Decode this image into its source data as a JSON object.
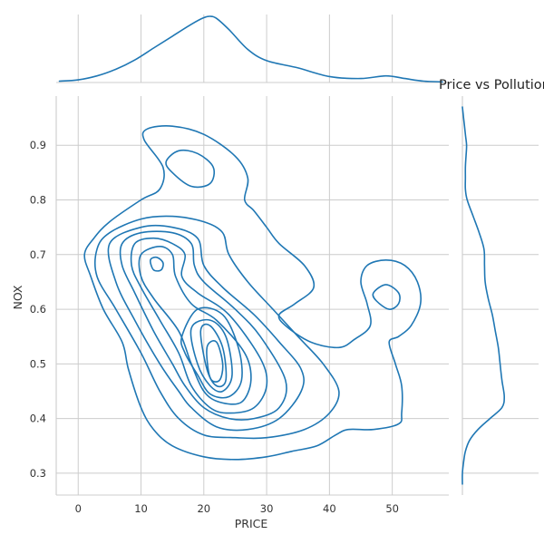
{
  "chart_data": {
    "type": "kde_joint",
    "title": "Price vs Pollution",
    "xlabel": "PRICE",
    "ylabel": "NOX",
    "x_ticks": [
      0,
      10,
      20,
      30,
      40,
      50
    ],
    "y_ticks": [
      0.3,
      0.4,
      0.5,
      0.6,
      0.7,
      0.8,
      0.9
    ],
    "xlim": [
      -3.5,
      59
    ],
    "ylim": [
      0.26,
      0.99
    ],
    "grid": true,
    "line_color": "#1f77b4",
    "marginal_x_density": {
      "x": [
        -3,
        0,
        3,
        6,
        9,
        12,
        15,
        18,
        20,
        21,
        22,
        24,
        27,
        30,
        35,
        40,
        45,
        49,
        52,
        55,
        58
      ],
      "density": [
        0.02,
        0.04,
        0.1,
        0.2,
        0.34,
        0.52,
        0.7,
        0.88,
        0.98,
        1.0,
        0.97,
        0.8,
        0.5,
        0.33,
        0.22,
        0.09,
        0.06,
        0.1,
        0.06,
        0.02,
        0.01
      ]
    },
    "marginal_y_density": {
      "y": [
        0.97,
        0.95,
        0.92,
        0.9,
        0.88,
        0.86,
        0.84,
        0.82,
        0.8,
        0.77,
        0.74,
        0.71,
        0.68,
        0.65,
        0.62,
        0.59,
        0.56,
        0.53,
        0.5,
        0.47,
        0.44,
        0.42,
        0.4,
        0.38,
        0.36,
        0.34,
        0.32,
        0.3,
        0.28
      ],
      "density": [
        0.0,
        0.02,
        0.05,
        0.07,
        0.06,
        0.05,
        0.05,
        0.05,
        0.08,
        0.18,
        0.28,
        0.36,
        0.37,
        0.38,
        0.43,
        0.5,
        0.55,
        0.6,
        0.63,
        0.66,
        0.7,
        0.66,
        0.46,
        0.26,
        0.12,
        0.05,
        0.02,
        0.0,
        0.0
      ]
    },
    "contours": [
      [
        [
          2.5,
          0.73
        ],
        [
          5,
          0.76
        ],
        [
          10,
          0.8
        ],
        [
          13,
          0.82
        ],
        [
          13.5,
          0.86
        ],
        [
          10.5,
          0.91
        ],
        [
          11,
          0.93
        ],
        [
          15,
          0.935
        ],
        [
          20,
          0.92
        ],
        [
          25,
          0.88
        ],
        [
          27,
          0.84
        ],
        [
          26.5,
          0.8
        ],
        [
          28,
          0.78
        ],
        [
          30,
          0.75
        ],
        [
          32,
          0.72
        ],
        [
          36,
          0.68
        ],
        [
          37.5,
          0.64
        ],
        [
          34.5,
          0.61
        ],
        [
          32,
          0.59
        ],
        [
          33,
          0.57
        ],
        [
          37,
          0.54
        ],
        [
          41.5,
          0.53
        ],
        [
          44,
          0.545
        ],
        [
          46.5,
          0.57
        ],
        [
          46,
          0.61
        ],
        [
          45,
          0.65
        ],
        [
          46,
          0.68
        ],
        [
          49,
          0.69
        ],
        [
          52,
          0.68
        ],
        [
          54,
          0.65
        ],
        [
          54.5,
          0.61
        ],
        [
          53,
          0.57
        ],
        [
          51,
          0.55
        ],
        [
          49.5,
          0.54
        ],
        [
          50.5,
          0.5
        ],
        [
          51.5,
          0.46
        ],
        [
          51.5,
          0.41
        ],
        [
          51,
          0.39
        ],
        [
          47,
          0.38
        ],
        [
          43,
          0.38
        ],
        [
          41,
          0.37
        ],
        [
          38,
          0.35
        ],
        [
          34,
          0.34
        ],
        [
          30,
          0.33
        ],
        [
          25,
          0.325
        ],
        [
          20,
          0.33
        ],
        [
          15,
          0.35
        ],
        [
          12,
          0.38
        ],
        [
          10,
          0.42
        ],
        [
          8,
          0.49
        ],
        [
          7,
          0.54
        ],
        [
          4,
          0.6
        ],
        [
          2,
          0.66
        ],
        [
          1,
          0.7
        ],
        [
          2.5,
          0.73
        ]
      ],
      [
        [
          3,
          0.71
        ],
        [
          5,
          0.74
        ],
        [
          10,
          0.765
        ],
        [
          15,
          0.77
        ],
        [
          20,
          0.76
        ],
        [
          23,
          0.74
        ],
        [
          24,
          0.7
        ],
        [
          27,
          0.65
        ],
        [
          31,
          0.6
        ],
        [
          35,
          0.55
        ],
        [
          39,
          0.5
        ],
        [
          41.5,
          0.45
        ],
        [
          40,
          0.41
        ],
        [
          36,
          0.38
        ],
        [
          30,
          0.365
        ],
        [
          25,
          0.365
        ],
        [
          20,
          0.37
        ],
        [
          16,
          0.4
        ],
        [
          13,
          0.45
        ],
        [
          10,
          0.52
        ],
        [
          6,
          0.6
        ],
        [
          3,
          0.66
        ],
        [
          3,
          0.71
        ]
      ],
      [
        [
          5,
          0.72
        ],
        [
          10,
          0.75
        ],
        [
          15,
          0.75
        ],
        [
          19,
          0.73
        ],
        [
          20,
          0.68
        ],
        [
          23,
          0.64
        ],
        [
          28,
          0.59
        ],
        [
          32,
          0.54
        ],
        [
          35.5,
          0.49
        ],
        [
          35.5,
          0.45
        ],
        [
          32,
          0.4
        ],
        [
          27,
          0.38
        ],
        [
          22,
          0.385
        ],
        [
          18,
          0.42
        ],
        [
          16,
          0.45
        ],
        [
          13,
          0.5
        ],
        [
          9,
          0.58
        ],
        [
          6,
          0.65
        ],
        [
          5,
          0.72
        ]
      ],
      [
        [
          7,
          0.72
        ],
        [
          10,
          0.74
        ],
        [
          15,
          0.74
        ],
        [
          18,
          0.72
        ],
        [
          18.5,
          0.68
        ],
        [
          20,
          0.65
        ],
        [
          25,
          0.6
        ],
        [
          29,
          0.55
        ],
        [
          33,
          0.47
        ],
        [
          32,
          0.42
        ],
        [
          28,
          0.4
        ],
        [
          24,
          0.4
        ],
        [
          20,
          0.42
        ],
        [
          17,
          0.46
        ],
        [
          15,
          0.5
        ],
        [
          12,
          0.56
        ],
        [
          9,
          0.63
        ],
        [
          7,
          0.68
        ],
        [
          7,
          0.72
        ]
      ],
      [
        [
          9,
          0.72
        ],
        [
          12,
          0.73
        ],
        [
          15,
          0.72
        ],
        [
          17,
          0.7
        ],
        [
          16.5,
          0.66
        ],
        [
          19,
          0.63
        ],
        [
          24,
          0.59
        ],
        [
          29,
          0.51
        ],
        [
          30,
          0.46
        ],
        [
          28,
          0.42
        ],
        [
          24,
          0.41
        ],
        [
          21,
          0.42
        ],
        [
          18,
          0.46
        ],
        [
          16,
          0.52
        ],
        [
          13,
          0.58
        ],
        [
          10,
          0.64
        ],
        [
          8.5,
          0.68
        ],
        [
          9,
          0.72
        ]
      ],
      [
        [
          10,
          0.7
        ],
        [
          13,
          0.715
        ],
        [
          15,
          0.7
        ],
        [
          15.5,
          0.66
        ],
        [
          18,
          0.61
        ],
        [
          22,
          0.58
        ],
        [
          26.5,
          0.52
        ],
        [
          27.5,
          0.47
        ],
        [
          26,
          0.43
        ],
        [
          22.5,
          0.43
        ],
        [
          20,
          0.45
        ],
        [
          18,
          0.5
        ],
        [
          16,
          0.56
        ],
        [
          12,
          0.62
        ],
        [
          10,
          0.66
        ],
        [
          10,
          0.7
        ]
      ],
      [
        [
          16.5,
          0.55
        ],
        [
          19,
          0.6
        ],
        [
          23,
          0.59
        ],
        [
          25.5,
          0.53
        ],
        [
          26,
          0.47
        ],
        [
          24,
          0.44
        ],
        [
          21,
          0.445
        ],
        [
          19,
          0.48
        ],
        [
          17,
          0.52
        ],
        [
          16.5,
          0.55
        ]
      ],
      [
        [
          11.5,
          0.69
        ],
        [
          12.5,
          0.695
        ],
        [
          13.5,
          0.685
        ],
        [
          13.2,
          0.672
        ],
        [
          12,
          0.672
        ],
        [
          11.5,
          0.69
        ]
      ],
      [
        [
          18,
          0.565
        ],
        [
          21,
          0.58
        ],
        [
          23.5,
          0.55
        ],
        [
          24.5,
          0.48
        ],
        [
          23,
          0.45
        ],
        [
          21,
          0.46
        ],
        [
          19,
          0.5
        ],
        [
          18,
          0.565
        ]
      ],
      [
        [
          19.5,
          0.56
        ],
        [
          21,
          0.57
        ],
        [
          23,
          0.53
        ],
        [
          23.5,
          0.47
        ],
        [
          22,
          0.46
        ],
        [
          20.5,
          0.49
        ],
        [
          19.5,
          0.56
        ]
      ],
      [
        [
          20.5,
          0.53
        ],
        [
          22,
          0.54
        ],
        [
          23,
          0.5
        ],
        [
          22.5,
          0.47
        ],
        [
          21,
          0.475
        ],
        [
          20.5,
          0.53
        ]
      ],
      [
        [
          14,
          0.87
        ],
        [
          16,
          0.89
        ],
        [
          19,
          0.885
        ],
        [
          21.5,
          0.86
        ],
        [
          21,
          0.83
        ],
        [
          18,
          0.825
        ],
        [
          15,
          0.85
        ],
        [
          14,
          0.87
        ]
      ],
      [
        [
          47,
          0.63
        ],
        [
          49,
          0.645
        ],
        [
          51,
          0.63
        ],
        [
          51,
          0.61
        ],
        [
          49.5,
          0.6
        ],
        [
          47.5,
          0.615
        ],
        [
          47,
          0.63
        ]
      ]
    ]
  }
}
